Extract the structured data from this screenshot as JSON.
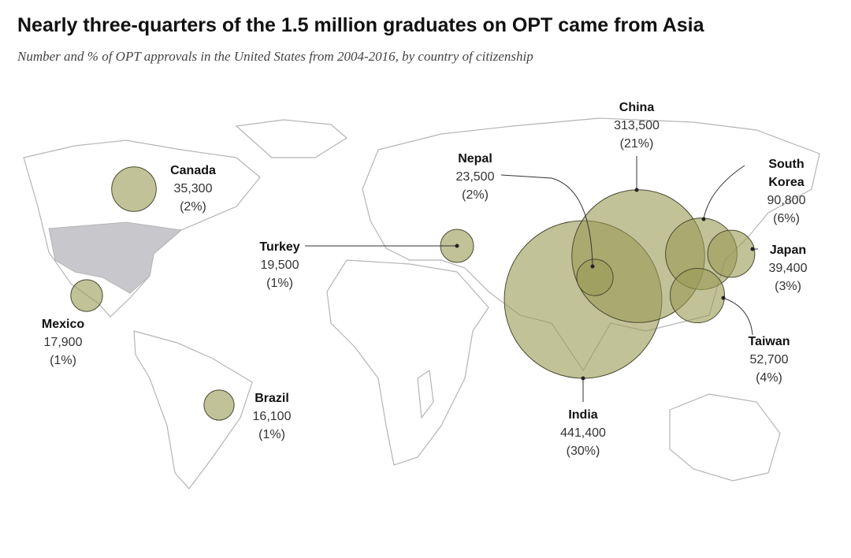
{
  "title": "Nearly three-quarters of the 1.5 million graduates on OPT came from Asia",
  "subtitle": "Number and % of OPT approvals in the United States from 2004-2016, by country of citizenship",
  "countries": [
    {
      "name": "Canada",
      "value": 35300,
      "value_label": "35,300",
      "share": 2,
      "share_label": "(2%)"
    },
    {
      "name": "Mexico",
      "value": 17900,
      "value_label": "17,900",
      "share": 1,
      "share_label": "(1%)"
    },
    {
      "name": "Brazil",
      "value": 16100,
      "value_label": "16,100",
      "share": 1,
      "share_label": "(1%)"
    },
    {
      "name": "Turkey",
      "value": 19500,
      "value_label": "19,500",
      "share": 1,
      "share_label": "(1%)"
    },
    {
      "name": "India",
      "value": 441400,
      "value_label": "441,400",
      "share": 30,
      "share_label": "(30%)"
    },
    {
      "name": "China",
      "value": 313500,
      "value_label": "313,500",
      "share": 21,
      "share_label": "(21%)"
    },
    {
      "name": "Nepal",
      "value": 23500,
      "value_label": "23,500",
      "share": 2,
      "share_label": "(2%)"
    },
    {
      "name": "South Korea",
      "value": 90800,
      "value_label": "90,800",
      "share": 6,
      "share_label": "(6%)"
    },
    {
      "name": "Taiwan",
      "value": 52700,
      "value_label": "52,700",
      "share": 4,
      "share_label": "(4%)"
    },
    {
      "name": "Japan",
      "value": 39400,
      "value_label": "39,400",
      "share": 3,
      "share_label": "(3%)"
    }
  ]
}
